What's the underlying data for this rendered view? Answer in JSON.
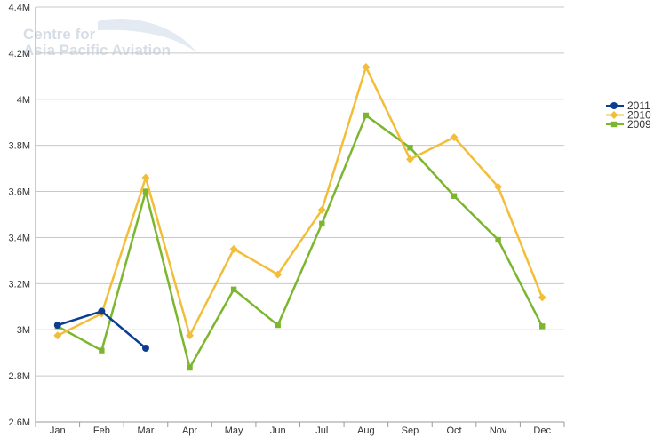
{
  "watermark": {
    "line1": "Centre for",
    "line2": "Asia Pacific Aviation"
  },
  "chart_data": {
    "type": "line",
    "categories": [
      "Jan",
      "Feb",
      "Mar",
      "Apr",
      "May",
      "Jun",
      "Jul",
      "Aug",
      "Sep",
      "Oct",
      "Nov",
      "Dec"
    ],
    "y_ticks": [
      "2.6M",
      "2.8M",
      "3M",
      "3.2M",
      "3.4M",
      "3.6M",
      "3.8M",
      "4M",
      "4.2M",
      "4.4M"
    ],
    "ylim": [
      2600000,
      4400000
    ],
    "grid": true,
    "legend_position": "right",
    "series": [
      {
        "name": "2011",
        "color": "#0d3d91",
        "marker": "circle",
        "values": [
          3020000,
          3080000,
          2920000,
          null,
          null,
          null,
          null,
          null,
          null,
          null,
          null,
          null
        ]
      },
      {
        "name": "2010",
        "color": "#f2be3a",
        "marker": "diamond",
        "values": [
          2975000,
          3070000,
          3660000,
          2975000,
          3350000,
          3240000,
          3520000,
          4140000,
          3740000,
          3835000,
          3620000,
          3140000
        ]
      },
      {
        "name": "2009",
        "color": "#7cb62f",
        "marker": "square",
        "values": [
          3015000,
          2910000,
          3600000,
          2835000,
          3175000,
          3020000,
          3460000,
          3930000,
          3790000,
          3580000,
          3390000,
          3015000
        ]
      }
    ]
  }
}
